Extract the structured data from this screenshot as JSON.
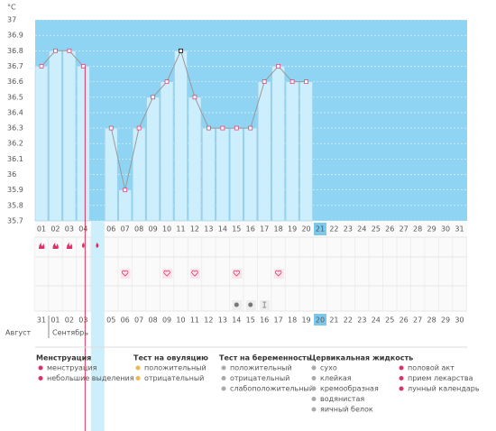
{
  "chart_data": {
    "type": "line",
    "unit_label": "°C",
    "categories": [
      "01",
      "02",
      "03",
      "04",
      null,
      "06",
      "07",
      "08",
      "09",
      "10",
      "11",
      "12",
      "13",
      "14",
      "15",
      "16",
      "17",
      "18",
      "19",
      "20",
      "21",
      "22",
      "23",
      "24",
      "25",
      "26",
      "27",
      "28",
      "29",
      "30",
      "31"
    ],
    "series": [
      {
        "color": "#e2457a",
        "values": [
          36.7,
          36.8,
          36.8,
          36.7,
          null,
          36.3,
          35.9,
          36.3,
          36.5,
          36.6,
          36.8,
          36.5,
          36.3,
          36.3,
          36.3,
          36.3,
          36.6,
          36.7,
          36.6,
          36.6,
          null,
          null,
          null,
          null,
          null,
          null,
          null,
          null,
          null,
          null,
          null
        ]
      }
    ],
    "ylim": [
      35.7,
      37
    ],
    "yticks": [
      35.7,
      35.8,
      35.9,
      36,
      36.1,
      36.2,
      36.3,
      36.4,
      36.5,
      36.6,
      36.7,
      36.8,
      36.9,
      37
    ],
    "grid": true
  },
  "calendar": {
    "dates": [
      "31",
      "01",
      "02",
      "03",
      null,
      "05",
      "06",
      "07",
      "08",
      "09",
      "10",
      "11",
      "12",
      "13",
      "14",
      "15",
      "16",
      "17",
      "18",
      "19",
      "20",
      "21",
      "22",
      "23",
      "24",
      "25",
      "26",
      "27",
      "28",
      "29",
      "30"
    ],
    "months": [
      "Август",
      "Сентябрь"
    ]
  },
  "legend": [
    {
      "title": "Менструация",
      "items": [
        "менструация",
        "небольшие выделения"
      ]
    },
    {
      "title": "Тест на овуляцию",
      "items": [
        "положительный",
        "отрицательный"
      ]
    },
    {
      "title": "Тест на беременность",
      "items": [
        "положительный",
        "отрицательный",
        "слабоположительный"
      ]
    },
    {
      "title": "Цервикальная жидкость",
      "items": [
        "сухо",
        "клейкая",
        "кремообразная",
        "водянистая",
        "яичный белок"
      ]
    },
    {
      "items": [
        "половой акт",
        "прием лекарства",
        "лунный календарь"
      ]
    }
  ]
}
